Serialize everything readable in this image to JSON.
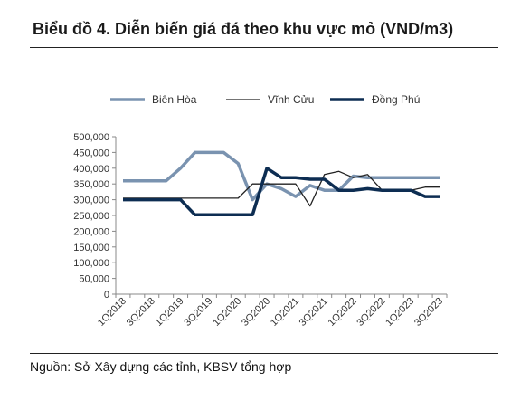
{
  "title": "Biểu đồ 4. Diễn biến giá đá theo khu vực mỏ (VND/m3)",
  "source": "Nguồn: Sở Xây dựng các tỉnh, KBSV tổng hợp",
  "colors": {
    "bien_hoa": "#7a93b0",
    "vinh_cuu": "#222222",
    "dong_phu": "#0d2d52"
  },
  "chart_data": {
    "type": "line",
    "title": "Biểu đồ 4. Diễn biến giá đá theo khu vực mỏ (VND/m3)",
    "xlabel": "",
    "ylabel": "",
    "ylim": [
      0,
      500000
    ],
    "yticks": [
      "0",
      "50,000",
      "100,000",
      "150,000",
      "200,000",
      "250,000",
      "300,000",
      "350,000",
      "400,000",
      "450,000",
      "500,000"
    ],
    "x": [
      "1Q2018",
      "2Q2018",
      "3Q2018",
      "4Q2018",
      "1Q2019",
      "2Q2019",
      "3Q2019",
      "4Q2019",
      "1Q2020",
      "2Q2020",
      "3Q2020",
      "4Q2020",
      "1Q2021",
      "2Q2021",
      "3Q2021",
      "4Q2021",
      "1Q2022",
      "2Q2022",
      "3Q2022",
      "4Q2022",
      "1Q2023",
      "2Q2023",
      "3Q2023"
    ],
    "xtick_labels": [
      "1Q2018",
      "3Q2018",
      "1Q2019",
      "3Q2019",
      "1Q2020",
      "3Q2020",
      "1Q2021",
      "3Q2021",
      "1Q2022",
      "3Q2022",
      "1Q2023",
      "3Q2023"
    ],
    "legend_position": "top",
    "grid": false,
    "series": [
      {
        "name": "Biên Hòa",
        "values": [
          360000,
          360000,
          360000,
          360000,
          400000,
          450000,
          450000,
          450000,
          415000,
          300000,
          350000,
          335000,
          310000,
          345000,
          330000,
          330000,
          375000,
          370000,
          370000,
          370000,
          370000,
          370000,
          370000
        ]
      },
      {
        "name": "Vĩnh Cửu",
        "values": [
          305000,
          305000,
          305000,
          305000,
          305000,
          305000,
          305000,
          305000,
          305000,
          350000,
          350000,
          350000,
          350000,
          280000,
          380000,
          390000,
          370000,
          380000,
          330000,
          330000,
          330000,
          340000,
          340000
        ]
      },
      {
        "name": "Đồng Phú",
        "values": [
          300000,
          300000,
          300000,
          300000,
          300000,
          252000,
          252000,
          252000,
          252000,
          252000,
          400000,
          370000,
          370000,
          365000,
          365000,
          330000,
          330000,
          335000,
          330000,
          330000,
          330000,
          310000,
          310000
        ]
      }
    ]
  }
}
